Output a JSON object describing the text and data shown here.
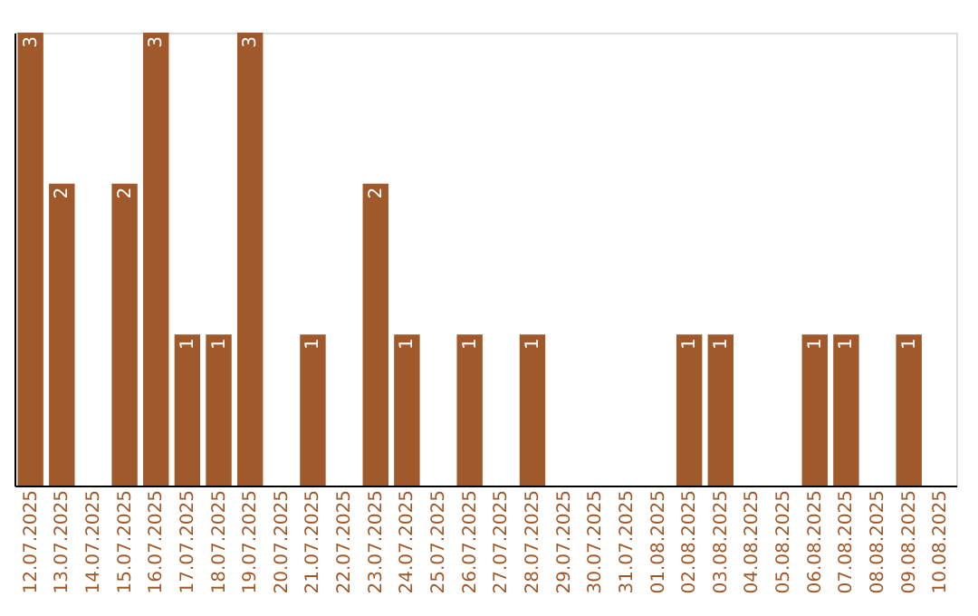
{
  "chart_data": {
    "type": "bar",
    "categories": [
      "12.07.2025",
      "13.07.2025",
      "14.07.2025",
      "15.07.2025",
      "16.07.2025",
      "17.07.2025",
      "18.07.2025",
      "19.07.2025",
      "20.07.2025",
      "21.07.2025",
      "22.07.2025",
      "23.07.2025",
      "24.07.2025",
      "25.07.2025",
      "26.07.2025",
      "27.07.2025",
      "28.07.2025",
      "29.07.2025",
      "30.07.2025",
      "31.07.2025",
      "01.08.2025",
      "02.08.2025",
      "03.08.2025",
      "04.08.2025",
      "05.08.2025",
      "06.08.2025",
      "07.08.2025",
      "08.08.2025",
      "09.08.2025",
      "10.08.2025"
    ],
    "values": [
      3,
      2,
      null,
      2,
      3,
      1,
      1,
      3,
      null,
      1,
      null,
      2,
      1,
      null,
      1,
      null,
      1,
      null,
      null,
      null,
      null,
      1,
      1,
      null,
      null,
      1,
      1,
      null,
      1,
      null
    ],
    "color": "#a0592b",
    "data_labels": true,
    "tick_labels": "x"
  }
}
